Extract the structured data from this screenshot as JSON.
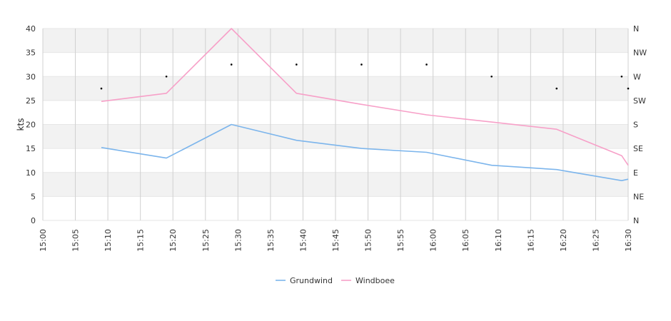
{
  "chart_data": {
    "type": "line",
    "title": "",
    "xlabel": "",
    "ylabel": "kts",
    "ylim": [
      0,
      40
    ],
    "y_ticks": [
      "0",
      "5",
      "10",
      "15",
      "20",
      "25",
      "30",
      "35",
      "40"
    ],
    "x_ticks": [
      "15:00",
      "15:05",
      "15:10",
      "15:15",
      "15:20",
      "15:25",
      "15:30",
      "15:35",
      "15:40",
      "15:45",
      "15:50",
      "15:55",
      "16:00",
      "16:05",
      "16:10",
      "16:15",
      "16:20",
      "16:25",
      "16:30"
    ],
    "x_range": [
      "15:00",
      "16:30"
    ],
    "y2_ticks": [
      "N",
      "NE",
      "E",
      "SE",
      "S",
      "SW",
      "W",
      "NW",
      "N"
    ],
    "grid": true,
    "legend_position": "bottom",
    "series": [
      {
        "name": "Grundwind",
        "color": "#7cb5ec",
        "points": [
          {
            "x": "15:09",
            "y": 15.2
          },
          {
            "x": "15:19",
            "y": 13.0
          },
          {
            "x": "15:29",
            "y": 20.0
          },
          {
            "x": "15:39",
            "y": 16.7
          },
          {
            "x": "15:49",
            "y": 15.0
          },
          {
            "x": "15:59",
            "y": 14.2
          },
          {
            "x": "16:09",
            "y": 11.5
          },
          {
            "x": "16:19",
            "y": 10.6
          },
          {
            "x": "16:29",
            "y": 8.3
          },
          {
            "x": "16:30",
            "y": 8.6
          }
        ]
      },
      {
        "name": "Windboee",
        "color": "#f7a0c8",
        "points": [
          {
            "x": "15:09",
            "y": 24.8
          },
          {
            "x": "15:19",
            "y": 26.5
          },
          {
            "x": "15:29",
            "y": 40.0
          },
          {
            "x": "15:39",
            "y": 26.5
          },
          {
            "x": "15:49",
            "y": 24.2
          },
          {
            "x": "15:59",
            "y": 22.0
          },
          {
            "x": "16:09",
            "y": 20.5
          },
          {
            "x": "16:19",
            "y": 19.0
          },
          {
            "x": "16:29",
            "y": 13.5
          },
          {
            "x": "16:30",
            "y": 11.5
          }
        ]
      }
    ],
    "direction_points": [
      {
        "x": "15:09",
        "dir": 247.5
      },
      {
        "x": "15:19",
        "dir": 270
      },
      {
        "x": "15:29",
        "dir": 292.5
      },
      {
        "x": "15:39",
        "dir": 292.5
      },
      {
        "x": "15:49",
        "dir": 292.5
      },
      {
        "x": "15:59",
        "dir": 292.5
      },
      {
        "x": "16:09",
        "dir": 270
      },
      {
        "x": "16:19",
        "dir": 247.5
      },
      {
        "x": "16:29",
        "dir": 270
      },
      {
        "x": "16:30",
        "dir": 247.5
      }
    ]
  }
}
